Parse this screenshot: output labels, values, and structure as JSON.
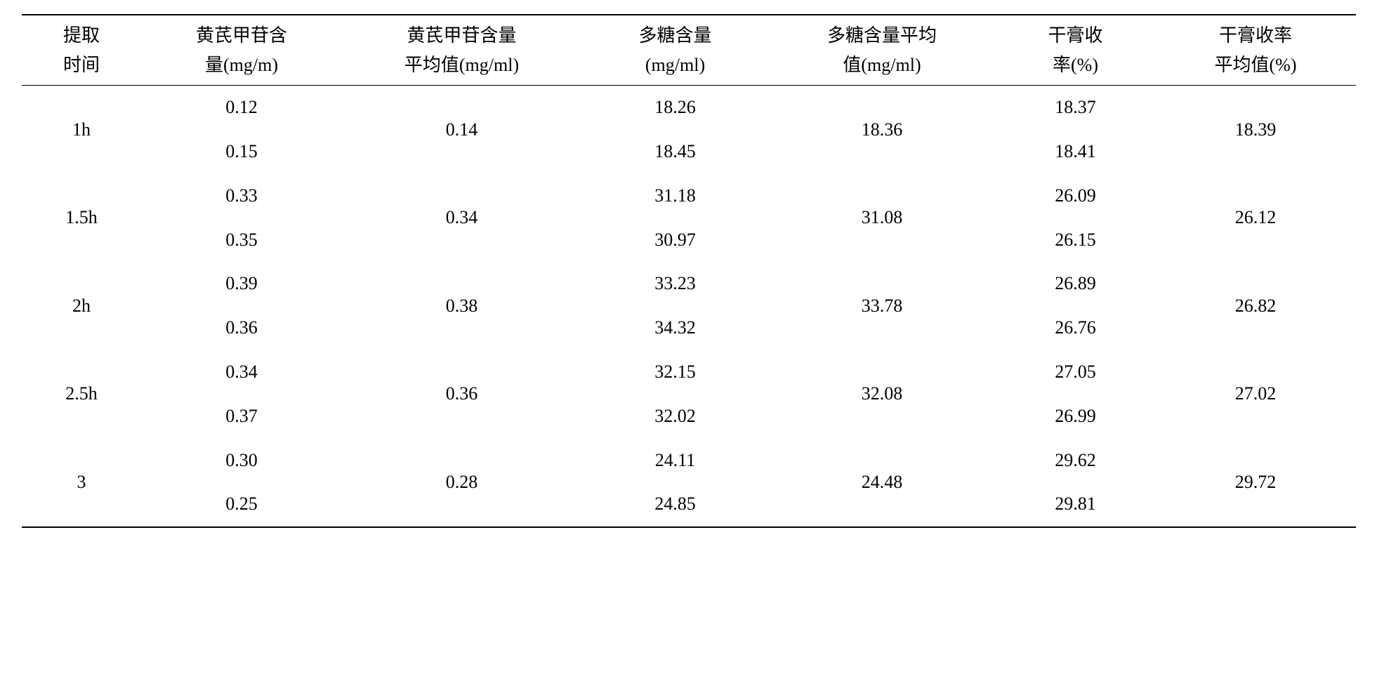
{
  "table": {
    "columns": [
      "提取\n时间",
      "黄芪甲苷含\n量(mg/m)",
      "黄芪甲苷含量\n平均值(mg/ml)",
      "多糖含量\n(mg/ml)",
      "多糖含量平均\n值(mg/ml)",
      "干膏收\n率(%)",
      "干膏收率\n平均值(%)"
    ],
    "groups": [
      {
        "time": "1h",
        "val1": [
          "0.12",
          "0.15"
        ],
        "avg1": "0.14",
        "val2": [
          "18.26",
          "18.45"
        ],
        "avg2": "18.36",
        "val3": [
          "18.37",
          "18.41"
        ],
        "avg3": "18.39"
      },
      {
        "time": "1.5h",
        "val1": [
          "0.33",
          "0.35"
        ],
        "avg1": "0.34",
        "val2": [
          "31.18",
          "30.97"
        ],
        "avg2": "31.08",
        "val3": [
          "26.09",
          "26.15"
        ],
        "avg3": "26.12"
      },
      {
        "time": "2h",
        "val1": [
          "0.39",
          "0.36"
        ],
        "avg1": "0.38",
        "val2": [
          "33.23",
          "34.32"
        ],
        "avg2": "33.78",
        "val3": [
          "26.89",
          "26.76"
        ],
        "avg3": "26.82"
      },
      {
        "time": "2.5h",
        "val1": [
          "0.34",
          "0.37"
        ],
        "avg1": "0.36",
        "val2": [
          "32.15",
          "32.02"
        ],
        "avg2": "32.08",
        "val3": [
          "27.05",
          "26.99"
        ],
        "avg3": "27.02"
      },
      {
        "time": "3",
        "val1": [
          "0.30",
          "0.25"
        ],
        "avg1": "0.28",
        "val2": [
          "24.11",
          "24.85"
        ],
        "avg2": "24.48",
        "val3": [
          "29.62",
          "29.81"
        ],
        "avg3": "29.72"
      }
    ],
    "border_color": "#000000",
    "text_color": "#000000",
    "background_color": "#ffffff",
    "font_size": 26,
    "column_widths": [
      "9%",
      "15%",
      "18%",
      "14%",
      "17%",
      "12%",
      "15%"
    ]
  }
}
